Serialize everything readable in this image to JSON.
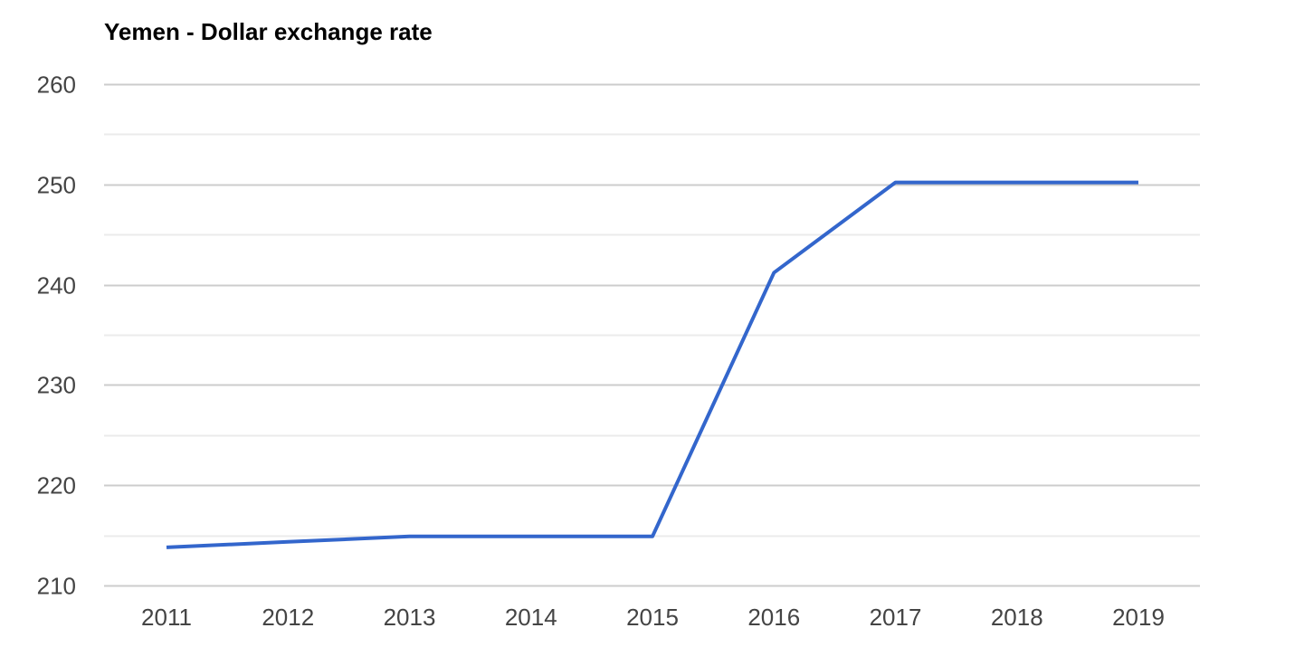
{
  "chart_data": {
    "type": "line",
    "title": "Yemen - Dollar exchange rate",
    "xlabel": "",
    "ylabel": "",
    "x": [
      "2011",
      "2012",
      "2013",
      "2014",
      "2015",
      "2016",
      "2017",
      "2018",
      "2019"
    ],
    "series": [
      {
        "values": [
          213.8,
          214.35,
          214.89,
          214.89,
          214.89,
          241.2,
          250.2,
          250.2,
          250.2
        ]
      }
    ],
    "ylim": [
      210,
      260
    ],
    "yticks": [
      "210",
      "220",
      "230",
      "240",
      "250",
      "260"
    ],
    "minor_gridlines": true,
    "grid": true,
    "legend": "none",
    "line_color": "#3366cc",
    "major_grid_color": "#cccccc",
    "minor_grid_color": "#ebebeb"
  }
}
